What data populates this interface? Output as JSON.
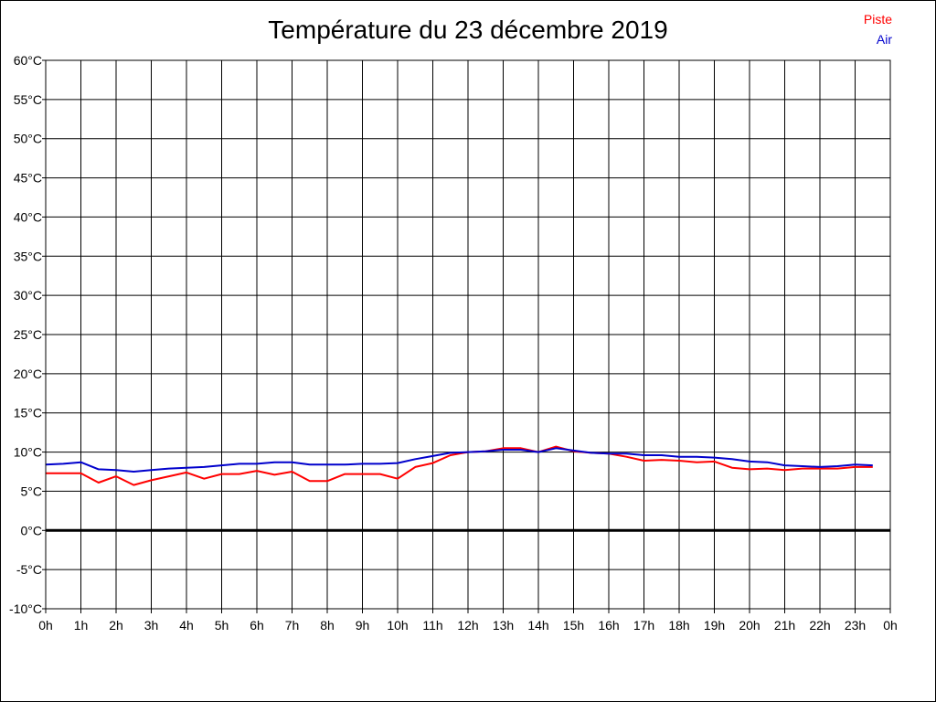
{
  "chart_data": {
    "type": "line",
    "title": "Température du 23 décembre 2019",
    "xlabel": "",
    "ylabel": "",
    "ylim": [
      -10,
      60
    ],
    "yticks": [
      -10,
      -5,
      0,
      5,
      10,
      15,
      20,
      25,
      30,
      35,
      40,
      45,
      50,
      55,
      60
    ],
    "ytick_labels": [
      "-10°C",
      "-5°C",
      "0°C",
      "5°C",
      "10°C",
      "15°C",
      "20°C",
      "25°C",
      "30°C",
      "35°C",
      "40°C",
      "45°C",
      "50°C",
      "55°C",
      "60°C"
    ],
    "xlim": [
      0,
      24
    ],
    "xticks": [
      0,
      1,
      2,
      3,
      4,
      5,
      6,
      7,
      8,
      9,
      10,
      11,
      12,
      13,
      14,
      15,
      16,
      17,
      18,
      19,
      20,
      21,
      22,
      23,
      24
    ],
    "xtick_labels": [
      "0h",
      "1h",
      "2h",
      "3h",
      "4h",
      "5h",
      "6h",
      "7h",
      "8h",
      "9h",
      "10h",
      "11h",
      "12h",
      "13h",
      "14h",
      "15h",
      "16h",
      "17h",
      "18h",
      "19h",
      "20h",
      "21h",
      "22h",
      "23h",
      "0h"
    ],
    "grid": true,
    "legend_placement": "top-right",
    "x": [
      0,
      0.5,
      1,
      1.5,
      2,
      2.5,
      3,
      3.5,
      4,
      4.5,
      5,
      5.5,
      6,
      6.5,
      7,
      7.5,
      8,
      8.5,
      9,
      9.5,
      10,
      10.5,
      11,
      11.5,
      12,
      12.5,
      13,
      13.5,
      14,
      14.5,
      15,
      15.5,
      16,
      16.5,
      17,
      17.5,
      18,
      18.5,
      19,
      19.5,
      20,
      20.5,
      21,
      21.5,
      22,
      22.5,
      23,
      23.5
    ],
    "series": [
      {
        "name": "Piste",
        "color": "#ff0000",
        "values": [
          7.3,
          7.3,
          7.3,
          6.1,
          6.9,
          5.8,
          6.4,
          6.9,
          7.4,
          6.6,
          7.2,
          7.2,
          7.6,
          7.1,
          7.5,
          6.3,
          6.3,
          7.2,
          7.2,
          7.2,
          6.6,
          8.1,
          8.6,
          9.6,
          10.0,
          10.1,
          10.5,
          10.5,
          10.0,
          10.7,
          10.1,
          9.9,
          9.8,
          9.4,
          8.9,
          9.0,
          8.9,
          8.7,
          8.8,
          8.0,
          7.8,
          7.9,
          7.7,
          7.9,
          7.9,
          7.9,
          8.1,
          8.1
        ]
      },
      {
        "name": "Air",
        "color": "#0000cc",
        "values": [
          8.4,
          8.5,
          8.7,
          7.8,
          7.7,
          7.5,
          7.7,
          7.9,
          8.0,
          8.1,
          8.3,
          8.5,
          8.5,
          8.7,
          8.7,
          8.4,
          8.4,
          8.4,
          8.5,
          8.5,
          8.6,
          9.1,
          9.5,
          9.9,
          10.0,
          10.1,
          10.3,
          10.3,
          10.0,
          10.5,
          10.2,
          9.9,
          9.8,
          9.8,
          9.6,
          9.6,
          9.4,
          9.4,
          9.3,
          9.1,
          8.8,
          8.7,
          8.3,
          8.2,
          8.1,
          8.2,
          8.4,
          8.3
        ]
      }
    ]
  }
}
